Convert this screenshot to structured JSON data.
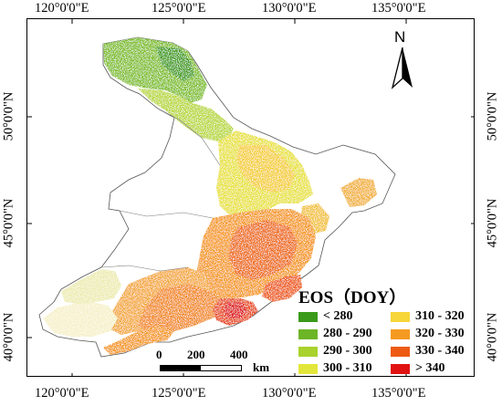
{
  "longitude_ticks": [
    "120°0'0\"E",
    "125°0'0\"E",
    "130°0'0\"E",
    "135°0'0\"E"
  ],
  "latitude_ticks": [
    "50°0'0\"N",
    "45°0'0\"N",
    "40°0'0\"N"
  ],
  "legend": {
    "title": "EOS（DOY）",
    "items": [
      {
        "label": "< 280",
        "color": "#3a9a1a"
      },
      {
        "label": "280 - 290",
        "color": "#6cb526"
      },
      {
        "label": "290 - 300",
        "color": "#a9d22c"
      },
      {
        "label": "300 - 310",
        "color": "#e3e63a"
      },
      {
        "label": "310 - 320",
        "color": "#f7d63a"
      },
      {
        "label": "320 - 330",
        "color": "#f59a20"
      },
      {
        "label": "330 - 340",
        "color": "#ee5a12"
      },
      {
        "label": "> 340",
        "color": "#e01212"
      }
    ]
  },
  "scale_bar": {
    "labels": [
      "0",
      "200",
      "400"
    ],
    "unit": "km"
  },
  "north_label": "N"
}
